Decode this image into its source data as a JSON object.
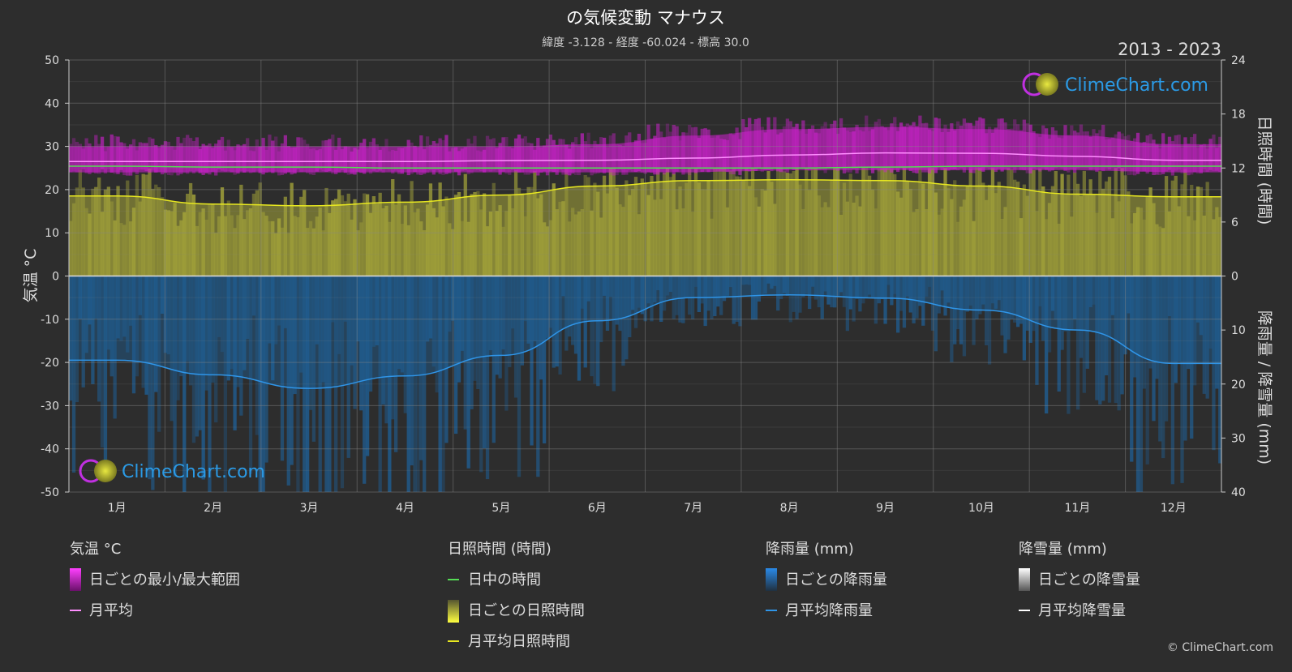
{
  "chart_data": {
    "type": "line",
    "title": "の気候変動 マナウス",
    "subtitle": "緯度 -3.128 - 経度 -60.024 - 標高 30.0",
    "period": "2013 - 2023",
    "watermark": "ClimeChart.com",
    "copyright": "© ClimeChart.com",
    "categories": [
      "1月",
      "2月",
      "3月",
      "4月",
      "5月",
      "6月",
      "7月",
      "8月",
      "9月",
      "10月",
      "11月",
      "12月"
    ],
    "y_left": {
      "label": "気温 °C",
      "ticks": [
        "50",
        "40",
        "30",
        "20",
        "10",
        "0",
        "-10",
        "-20",
        "-30",
        "-40",
        "-50"
      ],
      "range": [
        -50,
        50
      ]
    },
    "y_right_top": {
      "label": "日照時間 (時間)",
      "ticks": [
        "24",
        "18",
        "12",
        "6",
        "0"
      ],
      "range": [
        0,
        24
      ]
    },
    "y_right_bottom": {
      "label": "降雨量 / 降雪量 (mm)",
      "ticks": [
        "0",
        "10",
        "20",
        "30",
        "40"
      ],
      "range": [
        0,
        40
      ]
    },
    "grid": true,
    "series": {
      "temp_max_band": [
        30,
        30,
        30,
        30,
        30,
        30.5,
        32.5,
        34,
        34.5,
        34,
        32.5,
        30.5
      ],
      "temp_min_band": [
        24,
        24,
        24,
        24,
        24,
        24,
        24,
        24.5,
        24.5,
        24.5,
        24.5,
        24
      ],
      "temp_monthly_avg": [
        26.5,
        26.5,
        26.5,
        26.5,
        26.7,
        26.8,
        27.3,
        28.0,
        28.5,
        28.4,
        27.7,
        26.8
      ],
      "daylight_hours": [
        12.2,
        12.1,
        12.1,
        12.0,
        12.0,
        12.0,
        12.0,
        12.0,
        12.1,
        12.2,
        12.2,
        12.2
      ],
      "sunshine_monthly_avg": [
        8.9,
        8.0,
        7.8,
        8.2,
        9.0,
        10.0,
        10.6,
        10.7,
        10.6,
        10.0,
        9.1,
        8.8
      ],
      "rain_monthly_avg": [
        15.6,
        18.3,
        20.8,
        18.5,
        14.7,
        8.3,
        4.0,
        3.5,
        4.1,
        6.3,
        10.0,
        16.2
      ]
    },
    "colors": {
      "temp_band": "#d020d0",
      "temp_avg": "#ff8fff",
      "daylight": "#55dd55",
      "sunshine_fill": "#a8a83a",
      "sunshine_line": "#e8e820",
      "rain_fill": "#1f5f95",
      "rain_line": "#2f95e8",
      "accent": "#2b9ae5"
    }
  },
  "legend": {
    "groups": [
      {
        "title": "気温 °C",
        "items": [
          {
            "label": "日ごとの最小/最大範囲",
            "icon": "magenta-range-swatch"
          },
          {
            "label": "月平均",
            "icon": "pink-line"
          }
        ]
      },
      {
        "title": "日照時間 (時間)",
        "items": [
          {
            "label": "日中の時間",
            "icon": "green-line"
          },
          {
            "label": "日ごとの日照時間",
            "icon": "yellow-swatch"
          },
          {
            "label": "月平均日照時間",
            "icon": "yellow-line"
          }
        ]
      },
      {
        "title": "降雨量 (mm)",
        "items": [
          {
            "label": "日ごとの降雨量",
            "icon": "blue-swatch"
          },
          {
            "label": "月平均降雨量",
            "icon": "blue-line"
          }
        ]
      },
      {
        "title": "降雪量 (mm)",
        "items": [
          {
            "label": "日ごとの降雪量",
            "icon": "white-swatch"
          },
          {
            "label": "月平均降雪量",
            "icon": "white-line"
          }
        ]
      }
    ]
  }
}
